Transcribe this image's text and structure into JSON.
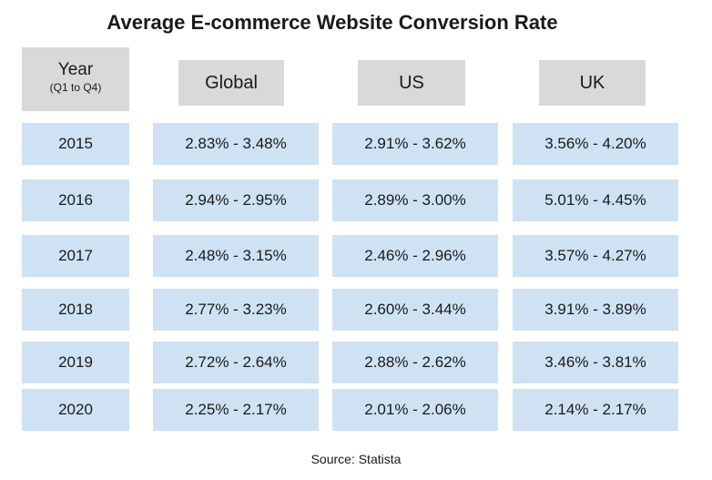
{
  "chart_data": {
    "type": "table",
    "title": "Average E-commerce Website Conversion Rate",
    "headers": {
      "year": "Year",
      "year_sub": "(Q1 to Q4)",
      "columns": [
        "Global",
        "US",
        "UK"
      ]
    },
    "rows": [
      {
        "year": "2015",
        "values": [
          "2.83% - 3.48%",
          "2.91% - 3.62%",
          "3.56% - 4.20%"
        ]
      },
      {
        "year": "2016",
        "values": [
          "2.94% - 2.95%",
          "2.89% - 3.00%",
          "5.01% - 4.45%"
        ]
      },
      {
        "year": "2017",
        "values": [
          "2.48% - 3.15%",
          "2.46% - 2.96%",
          "3.57% - 4.27%"
        ]
      },
      {
        "year": "2018",
        "values": [
          "2.77% - 3.23%",
          "2.60% - 3.44%",
          "3.91% - 3.89%"
        ]
      },
      {
        "year": "2019",
        "values": [
          "2.72% - 2.64%",
          "2.88% - 2.62%",
          "3.46% - 3.81%"
        ]
      },
      {
        "year": "2020",
        "values": [
          "2.25% - 2.17%",
          "2.01% - 2.06%",
          "2.14% - 2.17%"
        ]
      }
    ],
    "source": "Source: Statista"
  },
  "colors": {
    "header_bg": "#d9d9d9",
    "cell_bg": "#cfe2f3",
    "text": "#1a1a1a"
  }
}
